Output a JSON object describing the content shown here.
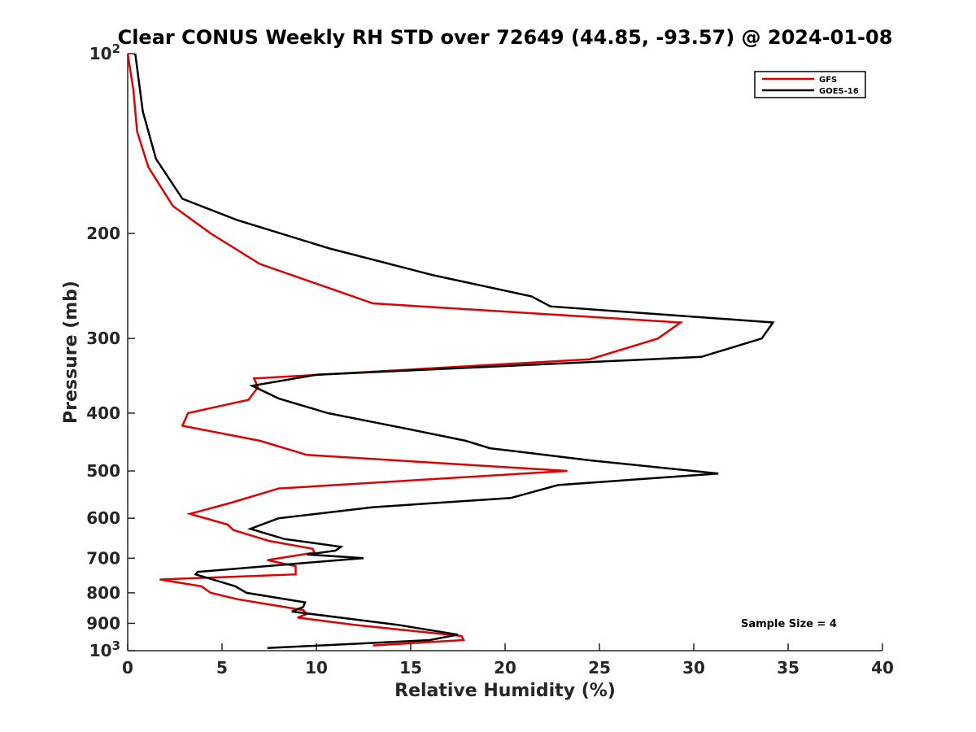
{
  "chart_data": {
    "type": "line",
    "title": "Clear CONUS Weekly RH STD over 72649 (44.85, -93.57) @ 2024-01-08",
    "xlabel": "Relative Humidity (%)",
    "ylabel": "Pressure (mb)",
    "xlim": [
      0,
      40
    ],
    "ylim": [
      100,
      1000
    ],
    "y_scale": "log",
    "y_reversed": true,
    "grid": false,
    "legend_position": "top-right",
    "x_ticks": [
      0,
      5,
      10,
      15,
      20,
      25,
      30,
      35,
      40
    ],
    "x_tick_labels": [
      "0",
      "5",
      "10",
      "15",
      "20",
      "25",
      "30",
      "35",
      "40"
    ],
    "y_ticks": [
      100,
      200,
      300,
      400,
      500,
      600,
      700,
      800,
      900,
      1000
    ],
    "y_tick_labels": [
      {
        "base": "10",
        "sup": "2"
      },
      {
        "base": "200",
        "sup": ""
      },
      {
        "base": "300",
        "sup": ""
      },
      {
        "base": "400",
        "sup": ""
      },
      {
        "base": "500",
        "sup": ""
      },
      {
        "base": "600",
        "sup": ""
      },
      {
        "base": "700",
        "sup": ""
      },
      {
        "base": "800",
        "sup": ""
      },
      {
        "base": "900",
        "sup": ""
      },
      {
        "base": "10",
        "sup": "3"
      }
    ],
    "annotation": "Sample Size = 4",
    "series": [
      {
        "name": "GFS",
        "color": "#e00000",
        "points": [
          [
            0.0,
            100
          ],
          [
            0.3,
            115
          ],
          [
            0.5,
            135
          ],
          [
            1.1,
            155
          ],
          [
            2.4,
            180
          ],
          [
            4.4,
            200
          ],
          [
            7.0,
            225
          ],
          [
            13.0,
            262
          ],
          [
            29.3,
            282
          ],
          [
            28.1,
            300
          ],
          [
            24.5,
            325
          ],
          [
            6.7,
            350
          ],
          [
            6.9,
            362
          ],
          [
            6.4,
            380
          ],
          [
            3.2,
            400
          ],
          [
            2.9,
            420
          ],
          [
            7.0,
            445
          ],
          [
            9.5,
            470
          ],
          [
            23.3,
            500
          ],
          [
            8.0,
            535
          ],
          [
            5.5,
            565
          ],
          [
            3.3,
            590
          ],
          [
            5.3,
            615
          ],
          [
            5.6,
            628
          ],
          [
            7.5,
            655
          ],
          [
            9.8,
            675
          ],
          [
            9.9,
            685
          ],
          [
            7.4,
            705
          ],
          [
            8.9,
            722
          ],
          [
            8.9,
            745
          ],
          [
            1.7,
            760
          ],
          [
            3.9,
            780
          ],
          [
            4.4,
            800
          ],
          [
            5.8,
            820
          ],
          [
            9.3,
            855
          ],
          [
            9.5,
            868
          ],
          [
            9.0,
            880
          ],
          [
            12.0,
            905
          ],
          [
            17.7,
            945
          ],
          [
            17.8,
            960
          ],
          [
            13.0,
            980
          ]
        ]
      },
      {
        "name": "GOES-16",
        "color": "#000000",
        "points": [
          [
            0.4,
            100
          ],
          [
            0.8,
            125
          ],
          [
            1.5,
            150
          ],
          [
            2.9,
            175
          ],
          [
            5.8,
            190
          ],
          [
            10.7,
            212
          ],
          [
            16.2,
            235
          ],
          [
            21.4,
            255
          ],
          [
            22.4,
            265
          ],
          [
            34.2,
            282
          ],
          [
            33.6,
            300
          ],
          [
            30.4,
            322
          ],
          [
            10.0,
            345
          ],
          [
            6.6,
            360
          ],
          [
            8.0,
            378
          ],
          [
            10.6,
            400
          ],
          [
            14.8,
            425
          ],
          [
            17.9,
            445
          ],
          [
            19.2,
            458
          ],
          [
            24.5,
            480
          ],
          [
            31.3,
            505
          ],
          [
            22.8,
            528
          ],
          [
            20.3,
            555
          ],
          [
            13.0,
            575
          ],
          [
            8.0,
            600
          ],
          [
            6.5,
            625
          ],
          [
            8.3,
            650
          ],
          [
            11.3,
            670
          ],
          [
            11.0,
            680
          ],
          [
            9.5,
            690
          ],
          [
            12.5,
            700
          ],
          [
            9.6,
            712
          ],
          [
            3.7,
            738
          ],
          [
            3.6,
            745
          ],
          [
            5.7,
            780
          ],
          [
            6.3,
            800
          ],
          [
            9.4,
            830
          ],
          [
            9.3,
            845
          ],
          [
            8.7,
            860
          ],
          [
            14.3,
            905
          ],
          [
            17.5,
            940
          ],
          [
            16.0,
            960
          ],
          [
            7.4,
            990
          ]
        ]
      }
    ]
  }
}
